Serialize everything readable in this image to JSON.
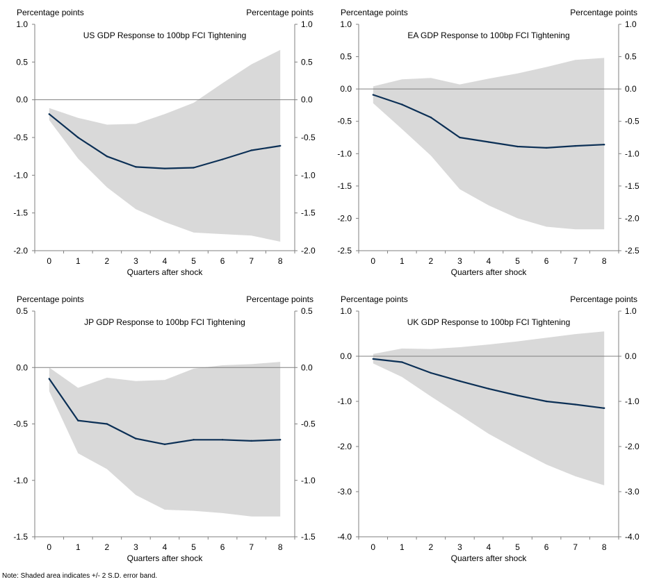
{
  "note": "Note: Shaded area indicates +/- 2 S.D. error band.",
  "colors": {
    "line": "#0b2f55",
    "band": "#d9d9d9",
    "zero_line": "#7f7f7f",
    "axis": "#7f7f7f"
  },
  "chart_data": [
    {
      "type": "line",
      "title": "US GDP Response to 100bp FCI Tightening",
      "ylabel_left": "Percentage points",
      "ylabel_right": "Percentage points",
      "xlabel": "Quarters after shock",
      "x": [
        0,
        1,
        2,
        3,
        4,
        5,
        6,
        7,
        8
      ],
      "ylim": [
        -2.0,
        1.0
      ],
      "yticks": [
        "1.0",
        "0.5",
        "0.0",
        "-0.5",
        "-1.0",
        "-1.5",
        "-2.0"
      ],
      "series": [
        {
          "name": "GDP response",
          "values": [
            -0.19,
            -0.5,
            -0.75,
            -0.89,
            -0.91,
            -0.9,
            -0.79,
            -0.67,
            -0.61
          ]
        }
      ],
      "band_lower": [
        -0.27,
        -0.78,
        -1.16,
        -1.45,
        -1.62,
        -1.76,
        -1.78,
        -1.8,
        -1.88
      ],
      "band_upper": [
        -0.11,
        -0.24,
        -0.33,
        -0.32,
        -0.19,
        -0.04,
        0.22,
        0.47,
        0.66
      ]
    },
    {
      "type": "line",
      "title": "EA GDP Response to 100bp FCI Tightening",
      "ylabel_left": "Percentage points",
      "ylabel_right": "Percentage points",
      "xlabel": "Quarters after shock",
      "x": [
        0,
        1,
        2,
        3,
        4,
        5,
        6,
        7,
        8
      ],
      "ylim": [
        -2.5,
        1.0
      ],
      "yticks": [
        "1.0",
        "0.5",
        "0.0",
        "-0.5",
        "-1.0",
        "-1.5",
        "-2.0",
        "-2.5"
      ],
      "series": [
        {
          "name": "GDP response",
          "values": [
            -0.09,
            -0.24,
            -0.44,
            -0.75,
            -0.82,
            -0.89,
            -0.91,
            -0.88,
            -0.86
          ]
        }
      ],
      "band_lower": [
        -0.22,
        -0.62,
        -1.03,
        -1.55,
        -1.8,
        -2.0,
        -2.13,
        -2.17,
        -2.17
      ],
      "band_upper": [
        0.04,
        0.15,
        0.17,
        0.07,
        0.16,
        0.24,
        0.34,
        0.45,
        0.48
      ]
    },
    {
      "type": "line",
      "title": "JP GDP Response to 100bp FCI Tightening",
      "ylabel_left": "Percentage points",
      "ylabel_right": "Percentage points",
      "xlabel": "Quarters after shock",
      "x": [
        0,
        1,
        2,
        3,
        4,
        5,
        6,
        7,
        8
      ],
      "ylim": [
        -1.5,
        0.5
      ],
      "yticks": [
        "0.5",
        "0.0",
        "-0.5",
        "-1.0",
        "-1.5"
      ],
      "series": [
        {
          "name": "GDP response",
          "values": [
            -0.1,
            -0.47,
            -0.5,
            -0.63,
            -0.68,
            -0.64,
            -0.64,
            -0.65,
            -0.64
          ]
        }
      ],
      "band_lower": [
        -0.21,
        -0.76,
        -0.9,
        -1.13,
        -1.26,
        -1.27,
        -1.29,
        -1.32,
        -1.32
      ],
      "band_upper": [
        0.0,
        -0.18,
        -0.09,
        -0.12,
        -0.11,
        -0.01,
        0.02,
        0.03,
        0.05
      ]
    },
    {
      "type": "line",
      "title": "UK GDP Response to 100bp FCI Tightening",
      "ylabel_left": "Percentage points",
      "ylabel_right": "Percentage points",
      "xlabel": "Quarters after shock",
      "x": [
        0,
        1,
        2,
        3,
        4,
        5,
        6,
        7,
        8
      ],
      "ylim": [
        -4.0,
        1.0
      ],
      "yticks": [
        "1.0",
        "0.0",
        "-1.0",
        "-2.0",
        "-3.0",
        "-4.0"
      ],
      "series": [
        {
          "name": "GDP response",
          "values": [
            -0.06,
            -0.13,
            -0.37,
            -0.55,
            -0.72,
            -0.87,
            -1.0,
            -1.07,
            -1.15
          ]
        }
      ],
      "band_lower": [
        -0.16,
        -0.46,
        -0.89,
        -1.3,
        -1.72,
        -2.07,
        -2.4,
        -2.66,
        -2.86
      ],
      "band_upper": [
        0.05,
        0.17,
        0.16,
        0.2,
        0.26,
        0.33,
        0.41,
        0.49,
        0.55
      ]
    }
  ]
}
